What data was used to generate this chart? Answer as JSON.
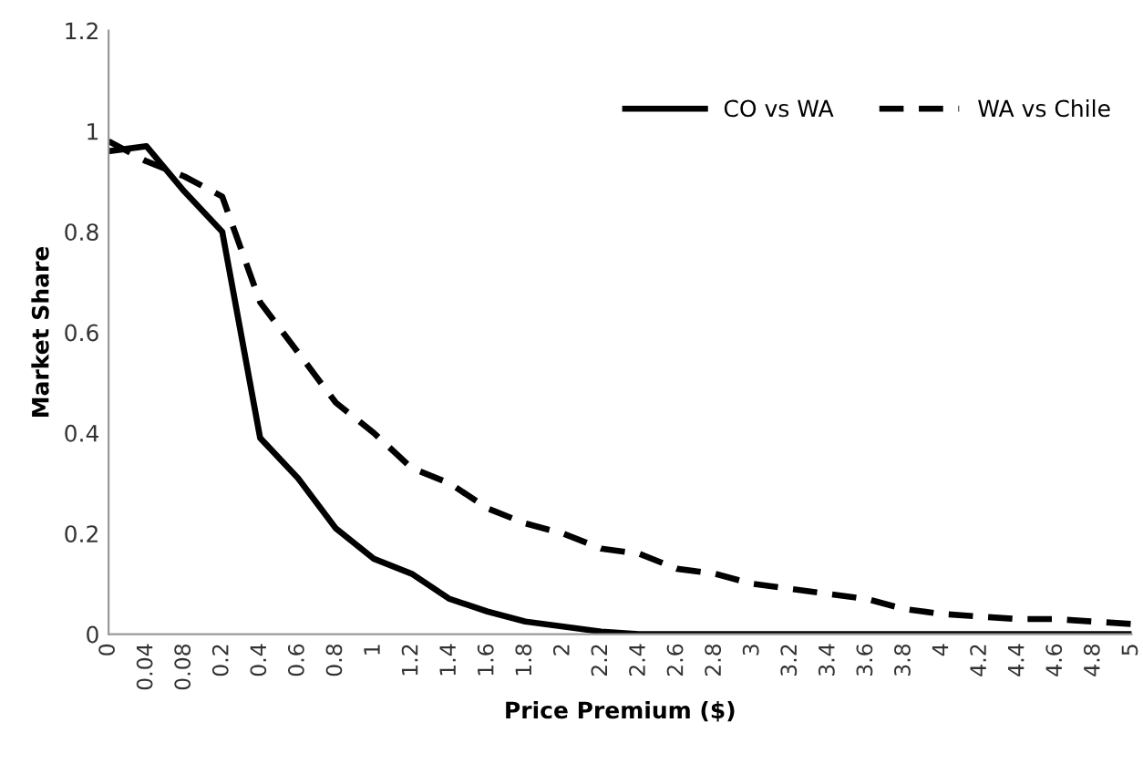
{
  "chart_data": {
    "type": "line",
    "xlabel": "Price Premium ($)",
    "ylabel": "Market Share",
    "categories": [
      "0",
      "0.04",
      "0.08",
      "0.2",
      "0.4",
      "0.6",
      "0.8",
      "1",
      "1.2",
      "1.4",
      "1.6",
      "1.8",
      "2",
      "2.2",
      "2.4",
      "2.6",
      "2.8",
      "3",
      "3.2",
      "3.4",
      "3.6",
      "3.8",
      "4",
      "4.2",
      "4.4",
      "4.6",
      "4.8",
      "5"
    ],
    "series": [
      {
        "name": "CO vs WA",
        "color": "#000000",
        "line_style": "solid",
        "values": [
          0.96,
          0.97,
          0.88,
          0.8,
          0.39,
          0.31,
          0.21,
          0.15,
          0.12,
          0.07,
          0.045,
          0.025,
          0.015,
          0.005,
          0,
          0,
          0,
          0,
          0,
          0,
          0,
          0,
          0,
          0,
          0,
          0,
          0,
          0
        ]
      },
      {
        "name": "WA vs Chile",
        "color": "#000000",
        "line_style": "dashed",
        "values": [
          0.98,
          0.94,
          0.91,
          0.87,
          0.66,
          0.56,
          0.46,
          0.4,
          0.33,
          0.3,
          0.25,
          0.22,
          0.2,
          0.17,
          0.16,
          0.13,
          0.12,
          0.1,
          0.09,
          0.08,
          0.07,
          0.05,
          0.04,
          0.035,
          0.03,
          0.03,
          0.025,
          0.02
        ]
      }
    ],
    "ylim": [
      0,
      1.2
    ],
    "yticks": [
      0,
      0.2,
      0.4,
      0.6,
      0.8,
      1,
      1.2
    ],
    "grid": false,
    "legend": "top right",
    "marker": "none"
  }
}
